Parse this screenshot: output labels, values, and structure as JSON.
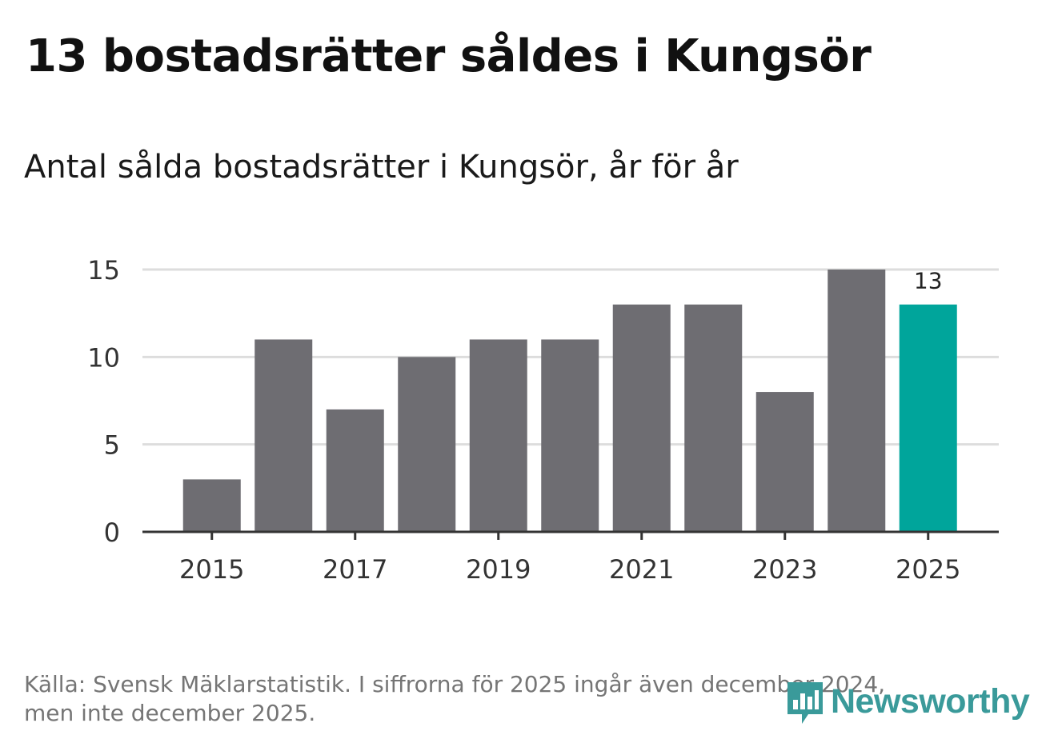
{
  "title": "13 bostadsrätter såldes i Kungsör",
  "subtitle": "Antal sålda bostadsrätter i Kungsör, år för år",
  "footer": {
    "line1": "Källa: Svensk Mäklarstatistik. I siffrorna för 2025 ingår även december 2024,",
    "line2": "men inte december 2025."
  },
  "logo": {
    "text": "Newsworthy",
    "icon": "bar-chart-bubble-icon"
  },
  "colors": {
    "bar": "#6e6d72",
    "highlight": "#00a59b",
    "grid": "#dddddd",
    "axis": "#333333",
    "logo": "#3a9a9a"
  },
  "chart_data": {
    "type": "bar",
    "title": "Antal sålda bostadsrätter i Kungsör, år för år",
    "categories": [
      "2015",
      "2016",
      "2017",
      "2018",
      "2019",
      "2020",
      "2021",
      "2022",
      "2023",
      "2024",
      "2025"
    ],
    "values": [
      3,
      11,
      7,
      10,
      11,
      11,
      13,
      13,
      8,
      15,
      13
    ],
    "highlight_index": 10,
    "data_labels": [
      {
        "index": 10,
        "text": "13"
      }
    ],
    "x_tick_labels": [
      "2015",
      "2017",
      "2019",
      "2021",
      "2023",
      "2025"
    ],
    "y_ticks": [
      0,
      5,
      10,
      15
    ],
    "ylim": [
      0,
      15
    ],
    "xlabel": "",
    "ylabel": "",
    "grid": true
  }
}
